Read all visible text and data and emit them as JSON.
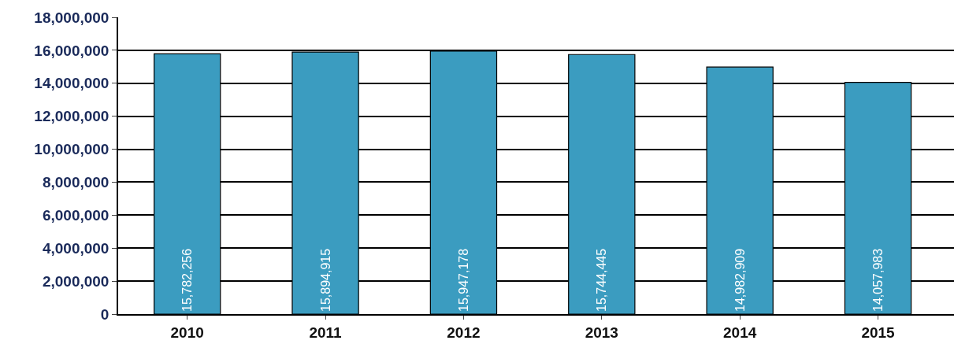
{
  "chart_data": {
    "type": "bar",
    "categories": [
      "2010",
      "2011",
      "2012",
      "2013",
      "2014",
      "2015"
    ],
    "values": [
      15782256,
      15894915,
      15947178,
      15744445,
      14982909,
      14057983
    ],
    "color": "#3b9cc0",
    "value_labels": [
      "15,782,256",
      "15,894,915",
      "15,947,178",
      "15,744,445",
      "14,982,909",
      "14,057,983"
    ],
    "ylim": [
      0,
      18000000
    ],
    "yticks": [
      {
        "value": 0,
        "label": "0"
      },
      {
        "value": 2000000,
        "label": "2,000,000"
      },
      {
        "value": 4000000,
        "label": "4,000,000"
      },
      {
        "value": 6000000,
        "label": "6,000,000"
      },
      {
        "value": 8000000,
        "label": "8,000,000"
      },
      {
        "value": 10000000,
        "label": "10,000,000"
      },
      {
        "value": 12000000,
        "label": "12,000,000"
      },
      {
        "value": 14000000,
        "label": "14,000,000"
      },
      {
        "value": 16000000,
        "label": "16,000,000"
      },
      {
        "value": 18000000,
        "label": "18,000,000"
      }
    ],
    "grid": "y",
    "legend": false
  }
}
